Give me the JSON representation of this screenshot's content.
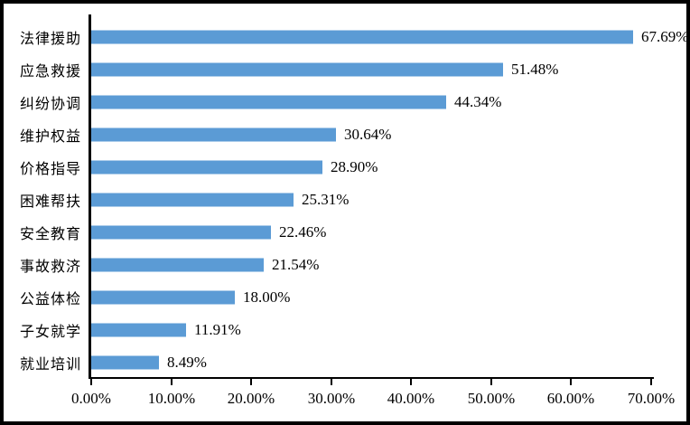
{
  "chart_data": {
    "type": "bar",
    "orientation": "horizontal",
    "title": "",
    "xlabel": "",
    "ylabel": "",
    "xlim": [
      0,
      70
    ],
    "grid": false,
    "legend": false,
    "bar_color": "#5B9BD5",
    "axis_color": "#000000",
    "text_color": "#000000",
    "categories": [
      "法律援助",
      "应急救援",
      "纠纷协调",
      "维护权益",
      "价格指导",
      "困难帮扶",
      "安全教育",
      "事故救济",
      "公益体检",
      "子女就学",
      "就业培训"
    ],
    "values": [
      67.69,
      51.48,
      44.34,
      30.64,
      28.9,
      25.31,
      22.46,
      21.54,
      18.0,
      11.91,
      8.49
    ],
    "value_labels": [
      "67.69%",
      "51.48%",
      "44.34%",
      "30.64%",
      "28.90%",
      "25.31%",
      "22.46%",
      "21.54%",
      "18.00%",
      "11.91%",
      "8.49%"
    ],
    "x_tick_values": [
      0,
      10,
      20,
      30,
      40,
      50,
      60,
      70
    ],
    "x_tick_labels": [
      "0.00%",
      "10.00%",
      "20.00%",
      "30.00%",
      "40.00%",
      "50.00%",
      "60.00%",
      "70.00%"
    ]
  }
}
